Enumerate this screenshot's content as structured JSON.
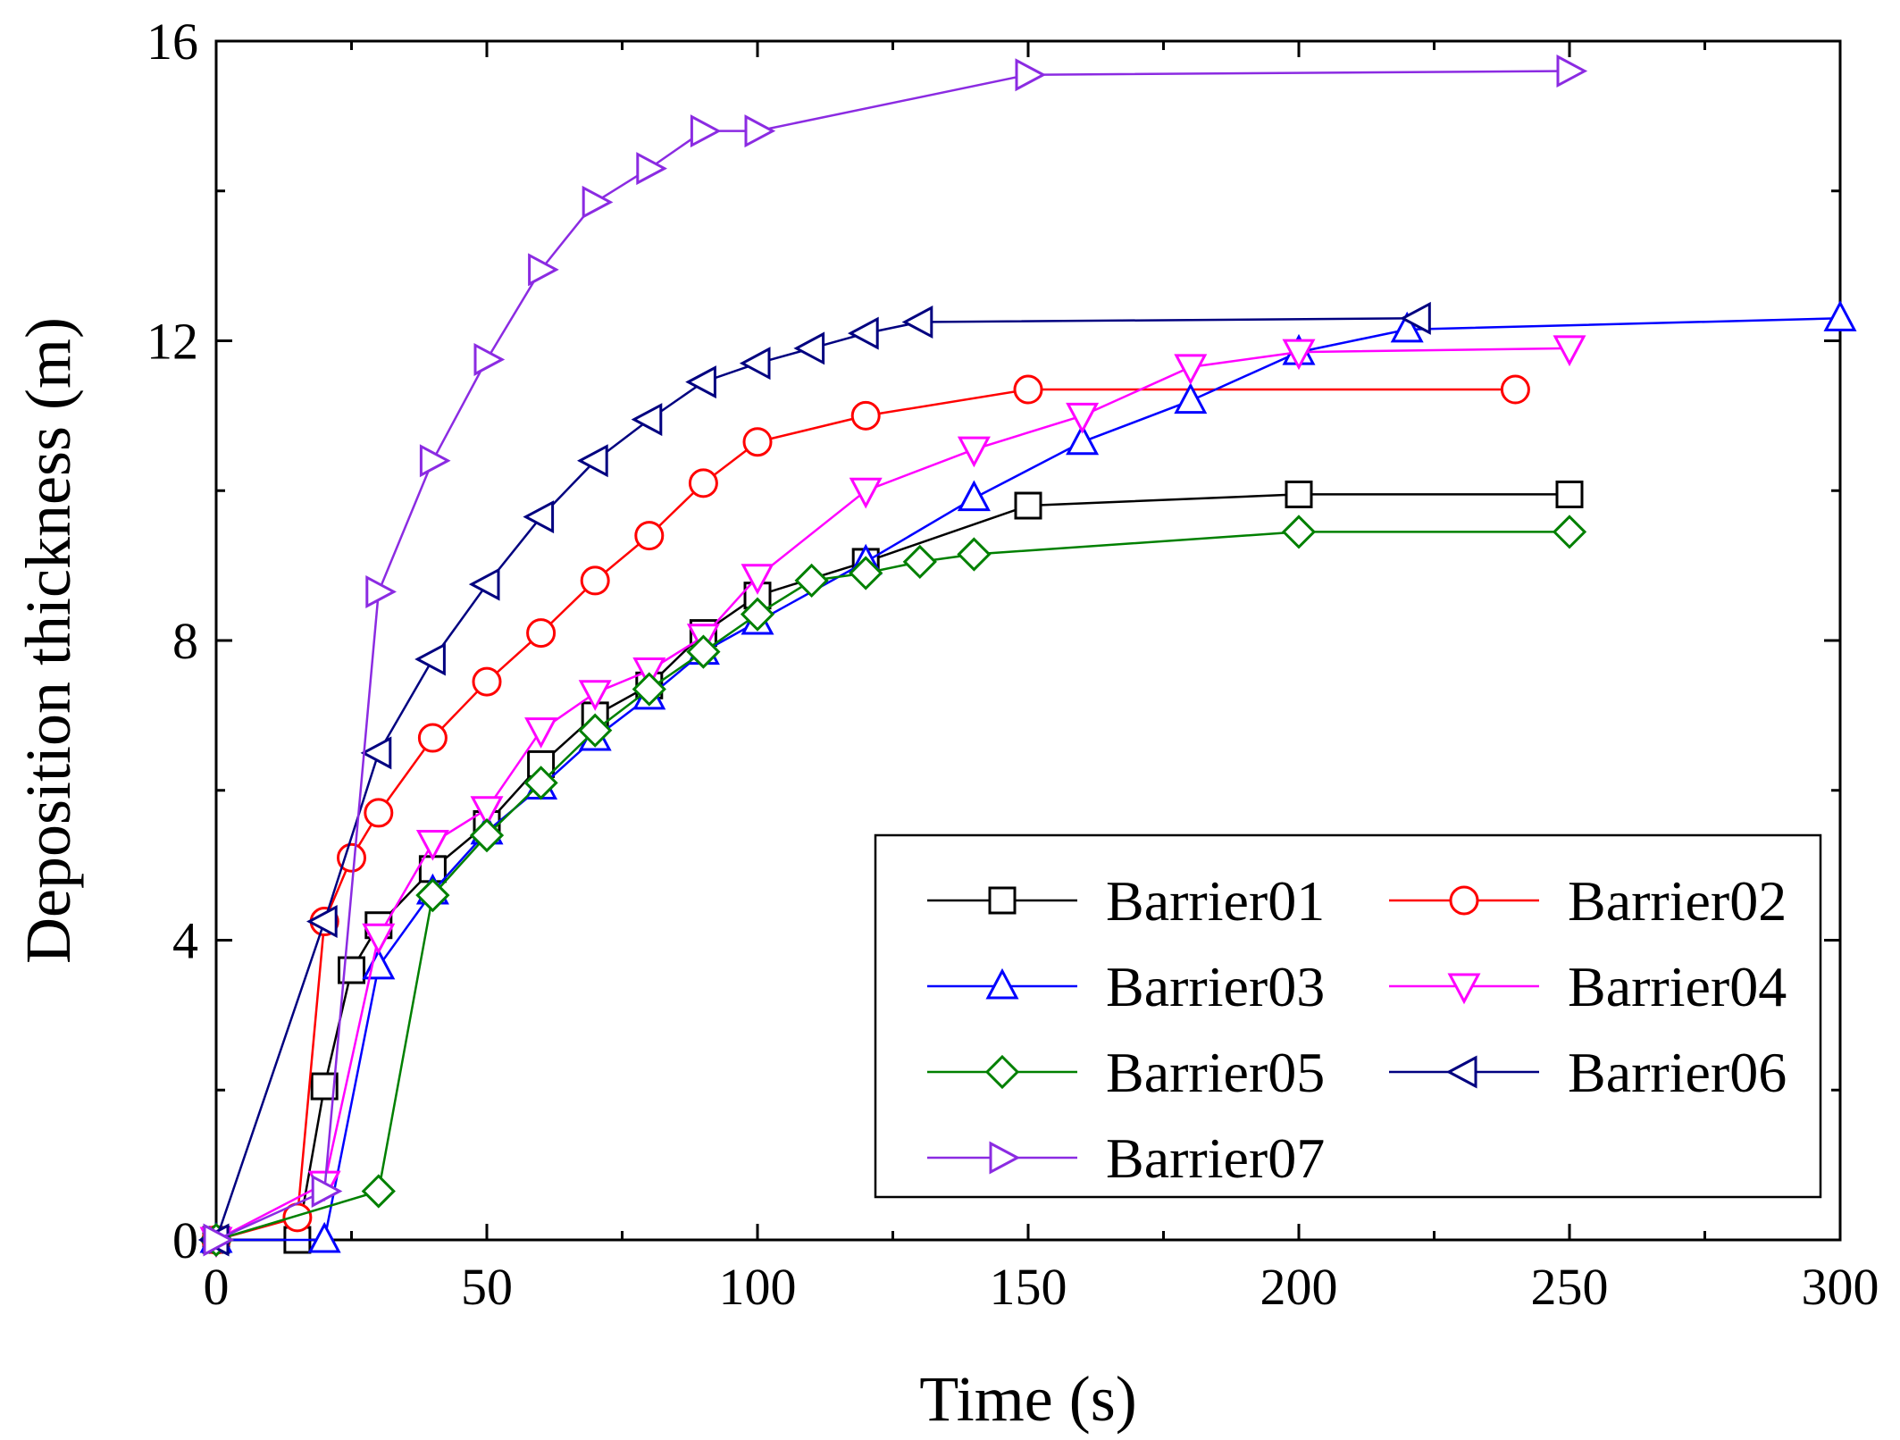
{
  "chart_data": {
    "type": "line",
    "title": "",
    "xlabel": "Time (s)",
    "ylabel": "Deposition thickness (m)",
    "xlim": [
      0,
      300
    ],
    "ylim": [
      0,
      16
    ],
    "xticks": [
      0,
      50,
      100,
      150,
      200,
      250,
      300
    ],
    "yticks": [
      0,
      4,
      8,
      12,
      16
    ],
    "xtick_labels": [
      "0",
      "50",
      "100",
      "150",
      "200",
      "250",
      "300"
    ],
    "ytick_labels": [
      "0",
      "4",
      "8",
      "12",
      "16"
    ],
    "grid": false,
    "legend_position": "bottom-right",
    "series": [
      {
        "name": "Barrier01",
        "color": "#000000",
        "marker": "square",
        "x": [
          0,
          15,
          20,
          25,
          30,
          40,
          50,
          60,
          70,
          80,
          90,
          100,
          120,
          150,
          200,
          250
        ],
        "y": [
          0,
          0,
          2.05,
          3.6,
          4.2,
          4.95,
          5.55,
          6.35,
          7.0,
          7.4,
          8.1,
          8.6,
          9.05,
          9.8,
          9.95,
          9.95
        ]
      },
      {
        "name": "Barrier02",
        "color": "#ff0000",
        "marker": "circle",
        "x": [
          0,
          15,
          20,
          25,
          30,
          40,
          50,
          60,
          70,
          80,
          90,
          100,
          120,
          150,
          240
        ],
        "y": [
          0,
          0.3,
          4.25,
          5.1,
          5.7,
          6.7,
          7.45,
          8.1,
          8.8,
          9.4,
          10.1,
          10.65,
          11.0,
          11.35,
          11.35
        ]
      },
      {
        "name": "Barrier03",
        "color": "#0000ff",
        "marker": "triangle-up",
        "x": [
          0,
          20,
          30,
          40,
          50,
          60,
          70,
          80,
          90,
          100,
          120,
          140,
          160,
          180,
          200,
          220,
          300
        ],
        "y": [
          0,
          0,
          3.65,
          4.65,
          5.45,
          6.05,
          6.7,
          7.25,
          7.85,
          8.25,
          9.05,
          9.9,
          10.65,
          11.2,
          11.85,
          12.15,
          12.3
        ]
      },
      {
        "name": "Barrier04",
        "color": "#ff00ff",
        "marker": "triangle-down",
        "x": [
          0,
          20,
          30,
          40,
          50,
          60,
          70,
          80,
          90,
          100,
          120,
          140,
          160,
          180,
          200,
          250
        ],
        "y": [
          0,
          0.75,
          4.05,
          5.3,
          5.75,
          6.8,
          7.3,
          7.6,
          8.05,
          8.85,
          10.0,
          10.55,
          11.0,
          11.65,
          11.85,
          11.9
        ]
      },
      {
        "name": "Barrier05",
        "color": "#008000",
        "marker": "diamond",
        "x": [
          0,
          30,
          40,
          50,
          60,
          70,
          80,
          90,
          100,
          110,
          120,
          130,
          140,
          200,
          250
        ],
        "y": [
          0,
          0.65,
          4.6,
          5.4,
          6.1,
          6.8,
          7.35,
          7.85,
          8.35,
          8.8,
          8.9,
          9.05,
          9.15,
          9.45,
          9.45
        ]
      },
      {
        "name": "Barrier06",
        "color": "#000080",
        "marker": "triangle-left",
        "x": [
          0,
          20,
          30,
          40,
          50,
          60,
          70,
          80,
          90,
          100,
          110,
          120,
          130,
          222
        ],
        "y": [
          0,
          4.25,
          6.5,
          7.75,
          8.75,
          9.65,
          10.4,
          10.95,
          11.45,
          11.7,
          11.9,
          12.1,
          12.25,
          12.3
        ]
      },
      {
        "name": "Barrier07",
        "color": "#8b2be2",
        "marker": "triangle-right",
        "x": [
          0,
          20,
          30,
          40,
          50,
          60,
          70,
          80,
          90,
          100,
          150,
          250
        ],
        "y": [
          0,
          0.65,
          8.65,
          10.4,
          11.75,
          12.95,
          13.85,
          14.3,
          14.8,
          14.8,
          15.55,
          15.6
        ]
      }
    ]
  }
}
